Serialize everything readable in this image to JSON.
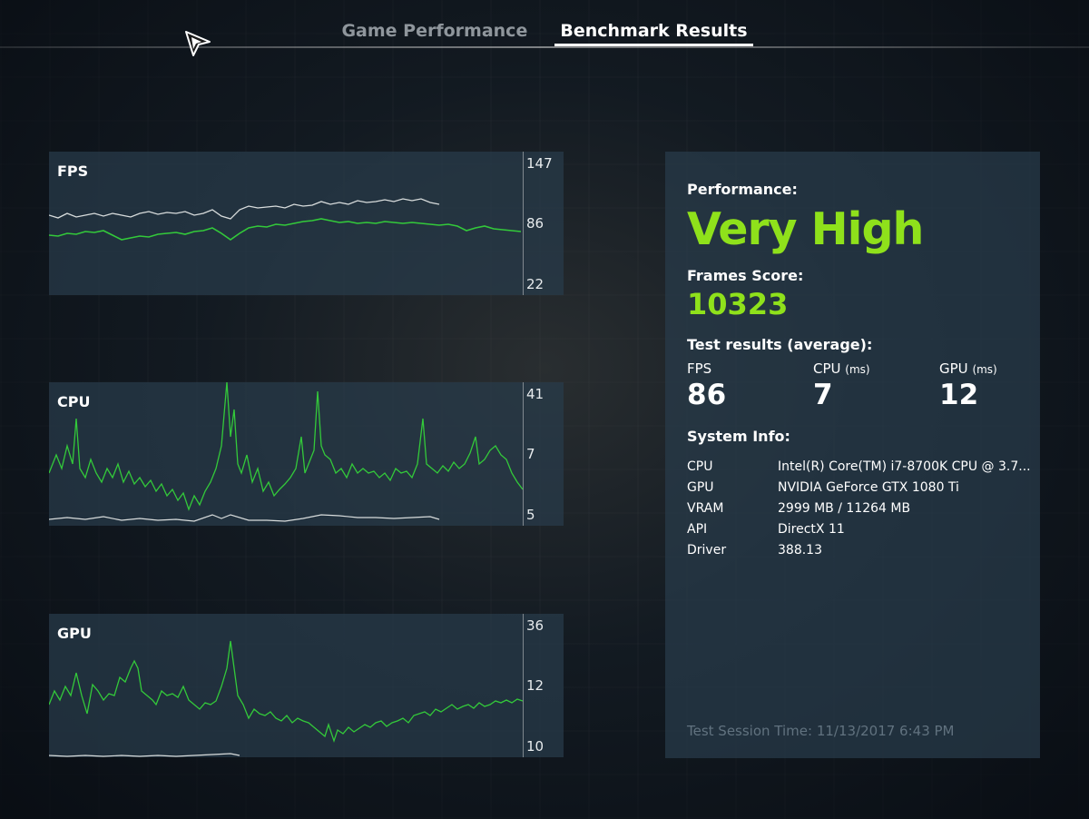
{
  "tabs": [
    {
      "label": "Game Performance",
      "active": false
    },
    {
      "label": "Benchmark Results",
      "active": true
    }
  ],
  "charts": {
    "fps": {
      "title": "FPS",
      "ticks": [
        "147",
        "86",
        "22"
      ]
    },
    "cpu": {
      "title": "CPU",
      "ticks": [
        "41",
        "7",
        "5"
      ]
    },
    "gpu": {
      "title": "GPU",
      "ticks": [
        "36",
        "12",
        "10"
      ]
    }
  },
  "results": {
    "performance_label": "Performance:",
    "performance_value": "Very High",
    "frames_score_label": "Frames Score:",
    "frames_score_value": "10323",
    "test_results_label": "Test results (average):",
    "fps_label": "FPS",
    "fps_value": "86",
    "cpu_label": "CPU",
    "cpu_unit": "(ms)",
    "cpu_value": "7",
    "gpu_label": "GPU",
    "gpu_unit": "(ms)",
    "gpu_value": "12",
    "system_info_label": "System Info:",
    "system_info": [
      {
        "key": "CPU",
        "value": "Intel(R) Core(TM) i7-8700K CPU @ 3.7..."
      },
      {
        "key": "GPU",
        "value": "NVIDIA GeForce GTX 1080 Ti"
      },
      {
        "key": "VRAM",
        "value": "2999 MB / 11264 MB"
      },
      {
        "key": "API",
        "value": "DirectX 11"
      },
      {
        "key": "Driver",
        "value": "388.13"
      }
    ],
    "session_time": "Test Session Time: 11/13/2017 6:43 PM"
  },
  "colors": {
    "accent_green": "#8fe11b",
    "series_green": "#33c93a",
    "series_white": "#d8dcdc",
    "panel_bg": "#28404b"
  },
  "icons": {
    "cursor": "arrow-cursor-icon"
  }
}
